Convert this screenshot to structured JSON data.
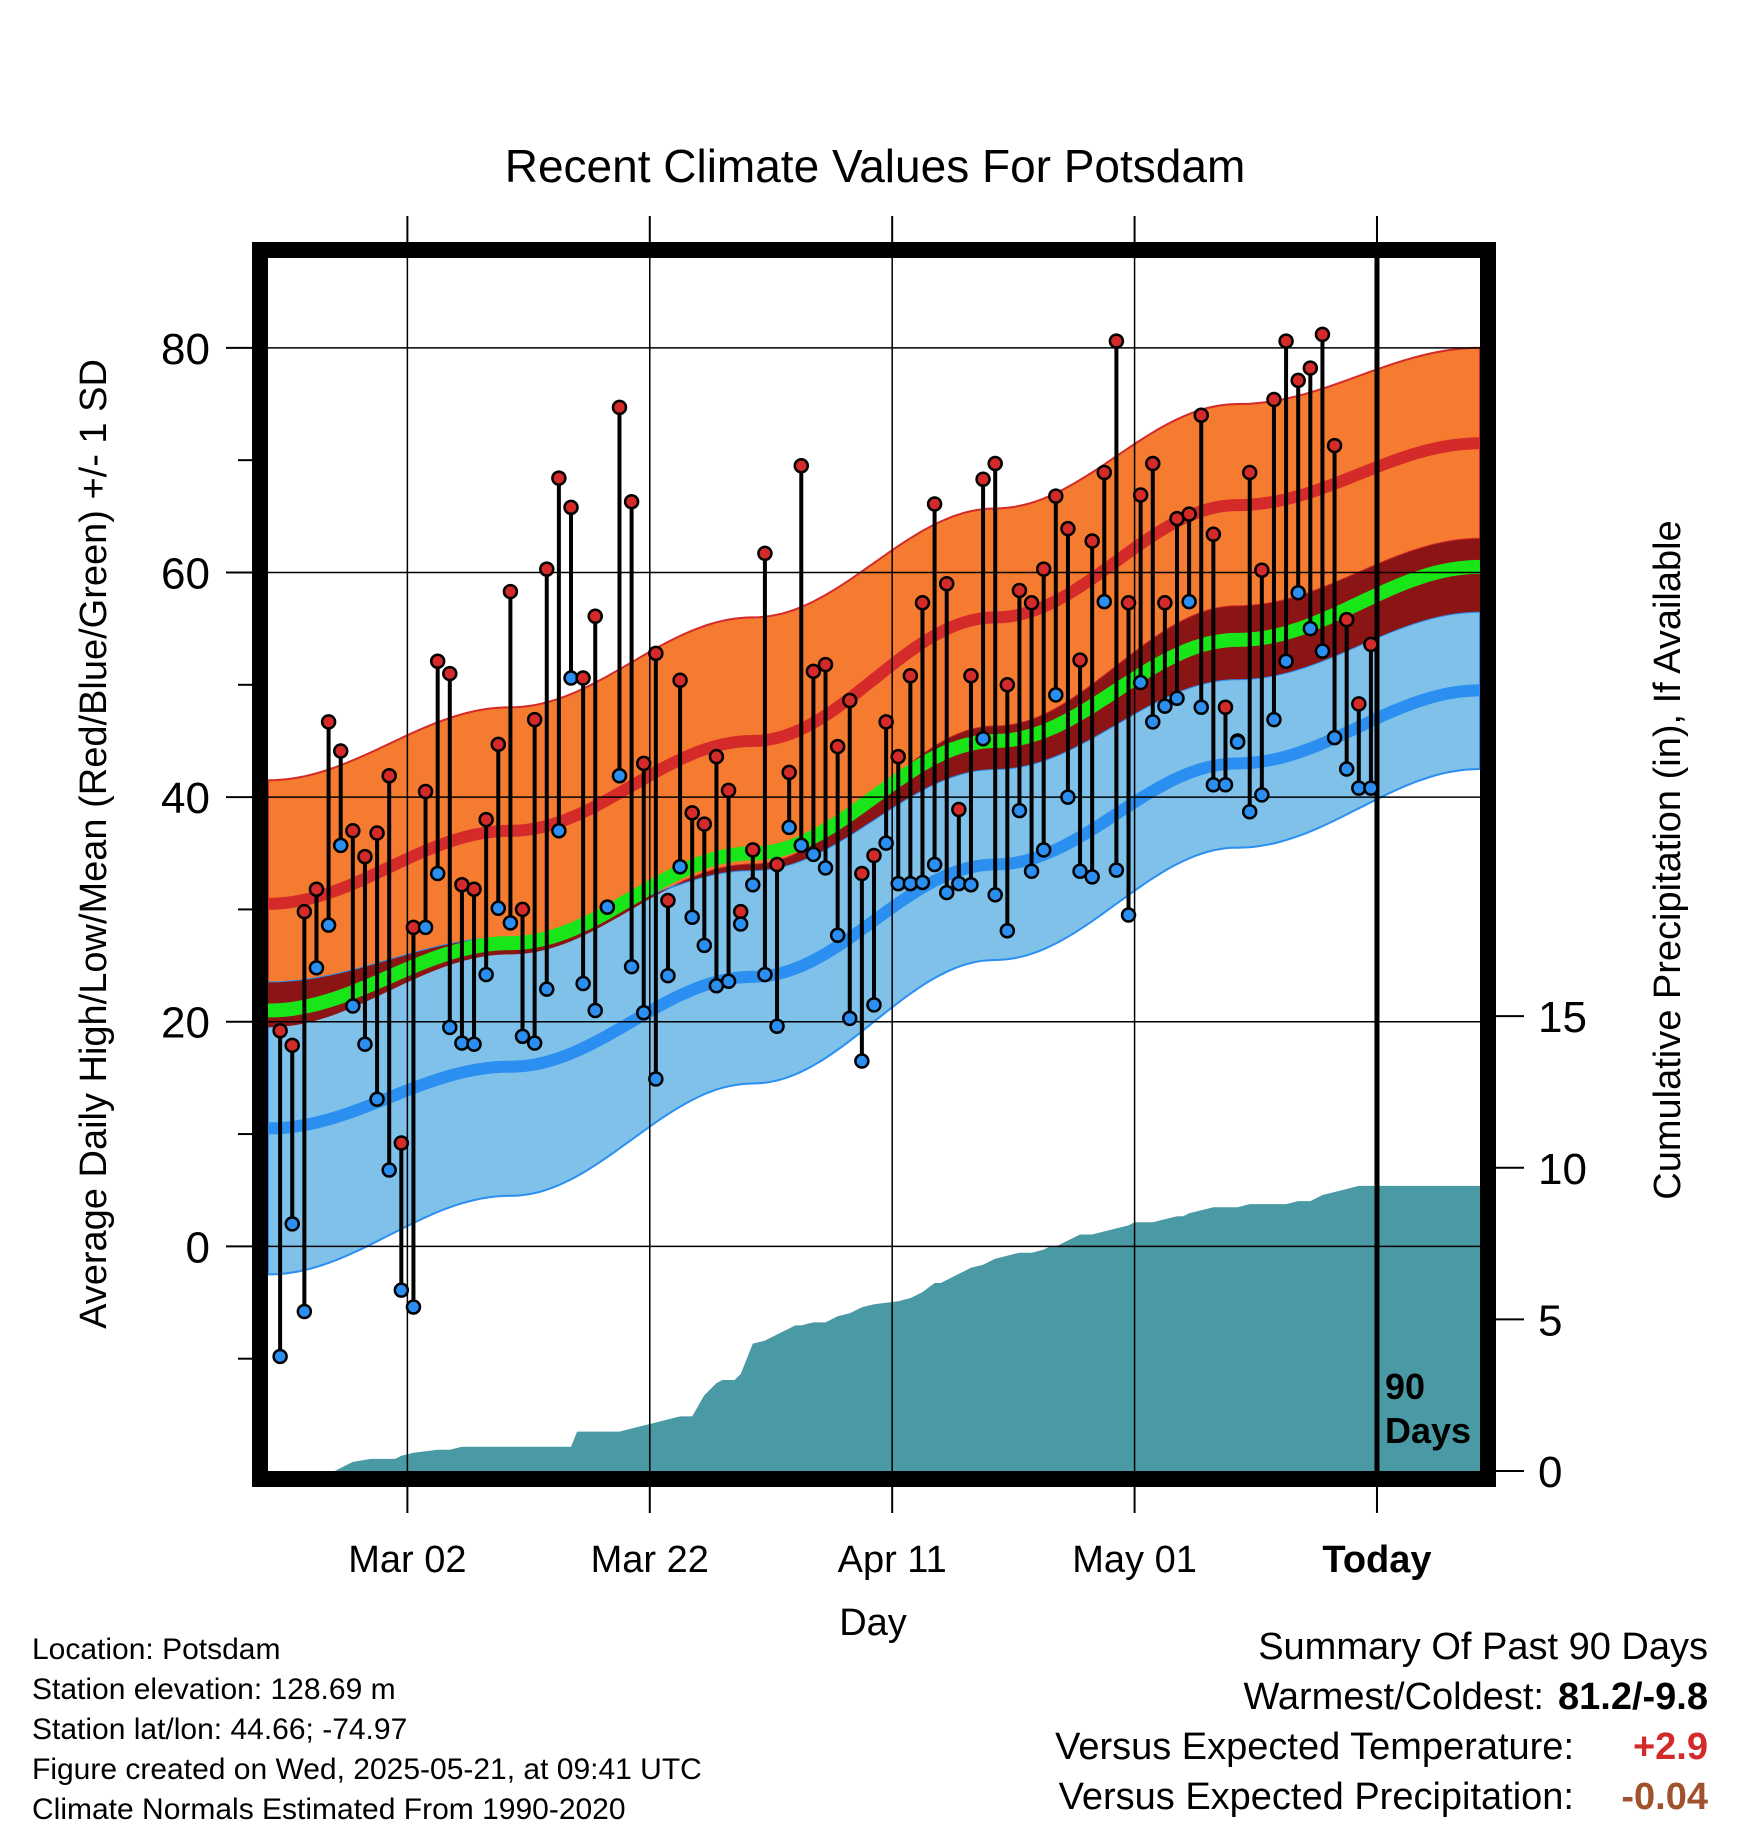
{
  "chart_data": {
    "type": "line",
    "title": "Recent Climate Values For Potsdam",
    "xlabel": "Day",
    "ylabel": "Average Daily High/Low/Mean (Red/Blue/Green) +/- 1 SD",
    "y2label": "Cumulative Precipitation (in), If Available",
    "ylim": [
      -20,
      88
    ],
    "y2lim": [
      0,
      40
    ],
    "xlim": [
      0,
      100
    ],
    "yticks": [
      0,
      20,
      40,
      60,
      80
    ],
    "y2ticks": [
      0,
      5,
      10,
      15
    ],
    "xticks": [
      {
        "day": 11.5,
        "label": "Mar 02"
      },
      {
        "day": 31.5,
        "label": "Mar 22"
      },
      {
        "day": 51.5,
        "label": "Apr 11"
      },
      {
        "day": 71.5,
        "label": "May 01"
      },
      {
        "day": 91.5,
        "label": "Today"
      }
    ],
    "today_day": 91.5,
    "days_label_1": "90",
    "days_label_2": "Days",
    "grid": true,
    "colors": {
      "high_band": "#f47b2f",
      "high_mean": "#d42a2a",
      "low_band": "#7fc1e8",
      "low_mean": "#2a8ff0",
      "mean": "#19e619",
      "overlap": "#8b1515",
      "precip": "#4a9aa5",
      "high_dot": "#d42a2a",
      "low_dot": "#2a8ff0"
    },
    "normals_days": [
      0,
      20,
      40,
      60,
      80,
      100
    ],
    "normal_high_mean": [
      30.5,
      37,
      45,
      56,
      66,
      71.5
    ],
    "normal_high_sd": [
      11,
      11,
      11,
      9.7,
      9,
      8.5
    ],
    "normal_low_mean": [
      10.5,
      16,
      24,
      34,
      43,
      49.5
    ],
    "normal_low_sd": [
      13,
      11.5,
      9.5,
      8.5,
      7.5,
      7
    ],
    "normal_mean": [
      21,
      27,
      35,
      45,
      54,
      60.5
    ],
    "daily_high": [
      19.2,
      17.9,
      29.8,
      31.8,
      46.7,
      44.1,
      37.0,
      34.7,
      36.8,
      41.9,
      9.2,
      28.4,
      40.5,
      52.1,
      51.0,
      32.2,
      31.8,
      38.0,
      44.7,
      58.3,
      30.0,
      46.9,
      60.3,
      68.4,
      65.8,
      50.6,
      56.1,
      30.2,
      74.7,
      66.3,
      43.0,
      52.8,
      30.8,
      50.4,
      38.6,
      37.6,
      43.6,
      40.6,
      29.8,
      35.3,
      61.7,
      34.0,
      42.2,
      69.5,
      51.2,
      51.8,
      44.5,
      48.6,
      33.2,
      34.8,
      46.7,
      43.6,
      50.8,
      57.3,
      66.1,
      59.0,
      38.9,
      50.8,
      68.3,
      69.7,
      50.0,
      58.4,
      57.3,
      60.3,
      66.8,
      63.9,
      52.2,
      62.8,
      68.9,
      80.6,
      57.3,
      66.9,
      69.7,
      57.3,
      64.8,
      65.2,
      74.0,
      63.4,
      48.0,
      45.0,
      68.9,
      60.2,
      75.4,
      80.6,
      77.1,
      78.2,
      81.2,
      71.3,
      55.8,
      48.3,
      53.6
    ],
    "daily_low": [
      -9.8,
      2.0,
      -5.8,
      24.8,
      28.6,
      35.7,
      21.4,
      18.0,
      13.1,
      6.8,
      -3.9,
      -5.4,
      28.4,
      33.2,
      19.5,
      18.1,
      18.0,
      24.2,
      30.1,
      28.8,
      18.7,
      18.1,
      22.9,
      37.0,
      50.6,
      23.4,
      21.0,
      30.2,
      41.9,
      24.9,
      20.8,
      14.9,
      24.1,
      33.8,
      29.3,
      26.8,
      23.2,
      23.6,
      28.7,
      32.2,
      24.2,
      19.6,
      37.3,
      35.7,
      34.9,
      33.7,
      27.7,
      20.3,
      16.5,
      21.5,
      35.9,
      32.3,
      32.3,
      32.4,
      34.0,
      31.5,
      32.3,
      32.2,
      45.2,
      31.3,
      28.1,
      38.8,
      33.4,
      35.3,
      49.1,
      40.0,
      33.4,
      32.9,
      57.4,
      33.5,
      29.5,
      50.2,
      46.7,
      48.1,
      48.8,
      57.4,
      48.0,
      41.1,
      41.1,
      44.9,
      38.7,
      40.2,
      46.9,
      52.1,
      58.2,
      55.0,
      53.0,
      45.3,
      42.5,
      40.8,
      40.8
    ],
    "precip_days": [
      0,
      5.5,
      7,
      8.5,
      10.5,
      11,
      12,
      14,
      15,
      16,
      17,
      18,
      19,
      20,
      21,
      22,
      23,
      24,
      25,
      25.5,
      26,
      27,
      28,
      29,
      30,
      31,
      32,
      33,
      34,
      35,
      36,
      37,
      37.5,
      38,
      38.5,
      39,
      40,
      41,
      42,
      43,
      43.5,
      44,
      45,
      46,
      47,
      48,
      49,
      50,
      52,
      53,
      54,
      55,
      55.5,
      56,
      57,
      58,
      59,
      59.5,
      60,
      61,
      62,
      63,
      64,
      64.5,
      65,
      66,
      66.5,
      67,
      68,
      69,
      70,
      71,
      71.5,
      72,
      73,
      74,
      75,
      75.5,
      76,
      77,
      78,
      78.5,
      79,
      80,
      81,
      82,
      83,
      84,
      85,
      86,
      86.5,
      87,
      88,
      89,
      90,
      91,
      100
    ],
    "precip_values": [
      0,
      0,
      0.3,
      0.4,
      0.4,
      0.5,
      0.6,
      0.7,
      0.7,
      0.8,
      0.8,
      0.8,
      0.8,
      0.8,
      0.8,
      0.8,
      0.8,
      0.8,
      0.8,
      1.3,
      1.3,
      1.3,
      1.3,
      1.3,
      1.4,
      1.5,
      1.6,
      1.7,
      1.8,
      1.8,
      2.5,
      2.9,
      3.0,
      3.0,
      3.0,
      3.2,
      4.2,
      4.3,
      4.5,
      4.7,
      4.8,
      4.8,
      4.9,
      4.9,
      5.1,
      5.2,
      5.4,
      5.5,
      5.6,
      5.7,
      5.9,
      6.2,
      6.2,
      6.3,
      6.5,
      6.7,
      6.8,
      6.9,
      7.0,
      7.1,
      7.2,
      7.2,
      7.3,
      7.4,
      7.4,
      7.6,
      7.7,
      7.8,
      7.8,
      7.9,
      8.0,
      8.1,
      8.2,
      8.2,
      8.2,
      8.3,
      8.4,
      8.4,
      8.5,
      8.6,
      8.7,
      8.7,
      8.7,
      8.7,
      8.8,
      8.8,
      8.8,
      8.8,
      8.9,
      8.9,
      9.0,
      9.1,
      9.2,
      9.3,
      9.4,
      9.4,
      9.4
    ]
  },
  "footer": {
    "location": "Location: Potsdam",
    "elevation": "Station elevation: 128.69 m",
    "latlon": "Station lat/lon: 44.66; -74.97",
    "created": "Figure created on Wed, 2025-05-21, at 09:41 UTC",
    "normals": "Climate Normals Estimated From 1990-2020"
  },
  "summary": {
    "title": "Summary Of Past 90 Days",
    "warmest_label": "Warmest/Coldest:",
    "warmest_value": "81.2/-9.8",
    "temp_label": "Versus Expected Temperature:",
    "temp_value": "+2.9",
    "temp_color": "#d42a2a",
    "precip_label": "Versus Expected Precipitation:",
    "precip_value": "-0.04",
    "precip_color": "#a0522d"
  }
}
